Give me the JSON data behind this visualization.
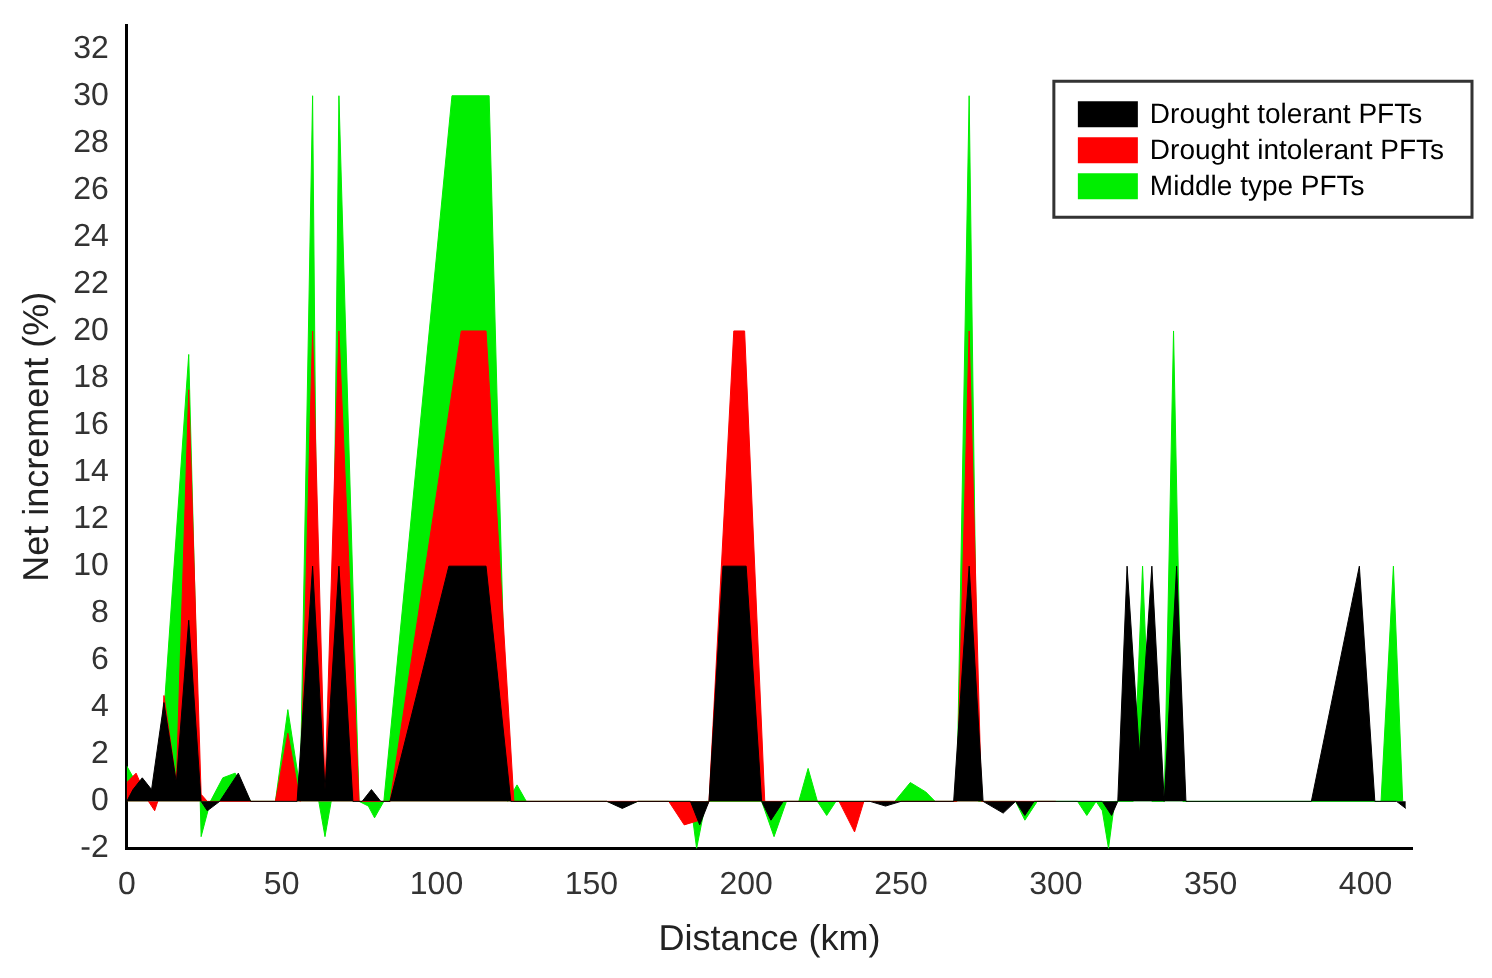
{
  "chart_data": {
    "type": "area",
    "xlabel": "Distance (km)",
    "ylabel": "Net increment (%)",
    "xlim": [
      0,
      415
    ],
    "xticks": [
      0,
      50,
      100,
      150,
      200,
      250,
      300,
      350,
      400
    ],
    "ylim": [
      -2,
      33
    ],
    "yticks": [
      -2,
      0,
      2,
      4,
      6,
      8,
      10,
      12,
      14,
      16,
      18,
      20,
      22,
      24,
      26,
      28,
      30,
      32
    ],
    "grid": false,
    "legend": "top right",
    "series": [
      {
        "name": "Drought tolerant PFTs",
        "color": "#000000",
        "x": [
          0,
          2,
          5,
          8,
          12,
          16,
          20,
          24,
          26,
          30,
          36,
          40,
          55,
          60,
          64,
          68.5,
          73,
          76,
          79,
          82,
          85,
          104,
          116,
          124,
          155,
          160,
          165,
          182,
          185,
          188,
          192.5,
          200,
          205,
          208,
          212,
          240,
          245,
          250,
          267,
          272,
          276.5,
          283,
          287,
          290,
          293,
          315,
          318,
          320,
          323,
          327,
          331,
          335,
          339,
          342,
          382.5,
          398,
          403,
          410,
          413
        ],
        "values": [
          0,
          0.5,
          1,
          0.5,
          4.2,
          0.8,
          7.7,
          0,
          -0.4,
          0,
          1.2,
          0,
          0,
          10,
          0.5,
          10,
          0,
          0,
          0.5,
          0,
          0,
          10,
          10,
          0,
          0,
          -0.3,
          0,
          0,
          -1,
          0,
          10,
          10,
          0,
          -0.8,
          0,
          0,
          -0.2,
          0,
          0,
          10,
          0,
          -0.5,
          0,
          -0.6,
          0,
          0,
          -0.6,
          0,
          10,
          2,
          10,
          0,
          10,
          0,
          0,
          10,
          0,
          0,
          -0.3
        ]
      },
      {
        "name": "Drought intolerant PFTs",
        "color": "#ff0000",
        "x": [
          0,
          3,
          7,
          9,
          10,
          12,
          16,
          20,
          24,
          26,
          48,
          52,
          56,
          60,
          64,
          68.5,
          75,
          85,
          108,
          116,
          125,
          175,
          180,
          185,
          188,
          196,
          199.5,
          206,
          230,
          235,
          238,
          268,
          272,
          276,
          300
        ],
        "values": [
          0.8,
          1.2,
          0,
          -0.4,
          0,
          4.5,
          0.8,
          17.5,
          0.3,
          0,
          0,
          2.9,
          0,
          20,
          0.5,
          20,
          0,
          0,
          20,
          20,
          0,
          0,
          -1,
          -0.8,
          0,
          20,
          20,
          0,
          0,
          -1.3,
          0,
          0,
          20,
          0,
          0
        ]
      },
      {
        "name": "Middle type PFTs",
        "color": "#00ee00",
        "x": [
          0,
          3,
          10,
          20,
          24,
          27,
          31,
          35,
          40,
          48,
          52,
          56,
          60,
          62,
          64,
          66,
          68.5,
          75,
          78,
          80,
          83,
          105,
          117,
          123,
          126,
          129,
          155,
          160,
          165,
          182,
          184,
          187,
          205,
          209,
          213,
          217,
          220,
          223,
          226,
          229,
          248,
          253,
          258,
          261,
          268,
          272,
          275,
          287,
          290,
          294,
          307,
          310,
          313,
          315,
          317,
          319,
          325,
          328,
          331,
          335,
          338,
          341,
          405,
          409,
          412
        ],
        "values": [
          1.5,
          0.8,
          0,
          19,
          -1.5,
          0,
          1,
          1.2,
          0,
          0,
          3.9,
          0.5,
          30,
          0,
          -1.5,
          0,
          30,
          0,
          -0.2,
          -0.7,
          0,
          30,
          30,
          0,
          0.7,
          0,
          0,
          -0.2,
          0,
          0,
          -2,
          0,
          0,
          -1.5,
          0,
          0,
          1.4,
          0,
          -0.6,
          0,
          0,
          0.8,
          0.4,
          0,
          0,
          30,
          0,
          0,
          -0.8,
          0,
          0,
          -0.6,
          0,
          -0.4,
          -2,
          0,
          0,
          10,
          0,
          0,
          20,
          0,
          0,
          10,
          0
        ]
      }
    ]
  }
}
